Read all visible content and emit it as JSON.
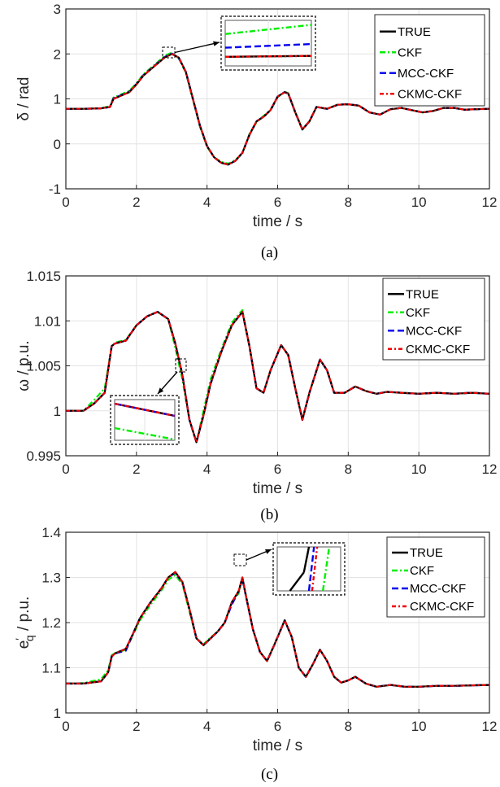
{
  "colors": {
    "TRUE": "#000000",
    "CKF": "#00ee00",
    "MCC-CKF": "#0000ee",
    "CKMC-CKF": "#ee0000",
    "grid": "#e3e3e3",
    "axis": "#262626"
  },
  "legend_labels": [
    "TRUE",
    "CKF",
    "MCC-CKF",
    "CKMC-CKF"
  ],
  "chart_data": [
    {
      "type": "line",
      "caption": "(a)",
      "xlabel": "time / s",
      "ylabel": "δ / rad",
      "xlim": [
        0,
        12
      ],
      "ylim": [
        -1,
        3
      ],
      "xticks": [
        "0",
        "2",
        "4",
        "6",
        "8",
        "10",
        "12"
      ],
      "yticks": [
        "-1",
        "0",
        "1",
        "2",
        "3"
      ],
      "grid": true,
      "legend_position": "top-right",
      "inset": "zoom near t = 3 s, top center",
      "x": [
        0,
        0.5,
        1.0,
        1.25,
        1.35,
        1.5,
        1.8,
        2.0,
        2.2,
        2.5,
        2.8,
        3.0,
        3.2,
        3.4,
        3.6,
        3.8,
        4.0,
        4.2,
        4.4,
        4.6,
        4.8,
        5.0,
        5.2,
        5.4,
        5.6,
        5.8,
        6.0,
        6.2,
        6.3,
        6.5,
        6.7,
        6.9,
        7.1,
        7.4,
        7.7,
        8.0,
        8.3,
        8.6,
        8.9,
        9.2,
        9.5,
        9.8,
        10.1,
        10.4,
        10.7,
        11.0,
        11.3,
        11.6,
        12.0
      ],
      "series": [
        {
          "name": "TRUE",
          "values": [
            0.78,
            0.78,
            0.79,
            0.82,
            1.0,
            1.05,
            1.15,
            1.32,
            1.52,
            1.72,
            1.92,
            2.0,
            1.92,
            1.6,
            1.0,
            0.4,
            -0.05,
            -0.3,
            -0.42,
            -0.46,
            -0.38,
            -0.2,
            0.2,
            0.5,
            0.6,
            0.75,
            1.05,
            1.15,
            1.12,
            0.7,
            0.32,
            0.5,
            0.82,
            0.78,
            0.87,
            0.88,
            0.85,
            0.7,
            0.65,
            0.77,
            0.8,
            0.75,
            0.7,
            0.73,
            0.8,
            0.8,
            0.76,
            0.77,
            0.78
          ]
        },
        {
          "name": "CKF",
          "values": [
            0.78,
            0.78,
            0.79,
            0.84,
            1.03,
            1.08,
            1.18,
            1.35,
            1.55,
            1.75,
            1.96,
            2.03,
            1.9,
            1.58,
            0.98,
            0.38,
            -0.07,
            -0.3,
            -0.4,
            -0.44,
            -0.36,
            -0.22,
            0.22,
            0.48,
            0.62,
            0.76,
            1.04,
            1.15,
            1.13,
            0.71,
            0.32,
            0.5,
            0.82,
            0.78,
            0.87,
            0.88,
            0.85,
            0.7,
            0.65,
            0.77,
            0.8,
            0.75,
            0.7,
            0.73,
            0.8,
            0.8,
            0.76,
            0.77,
            0.78
          ]
        },
        {
          "name": "MCC-CKF",
          "values": [
            0.78,
            0.78,
            0.79,
            0.82,
            1.01,
            1.06,
            1.16,
            1.33,
            1.53,
            1.73,
            1.93,
            2.01,
            1.91,
            1.6,
            1.0,
            0.4,
            -0.05,
            -0.3,
            -0.42,
            -0.46,
            -0.38,
            -0.2,
            0.2,
            0.5,
            0.6,
            0.75,
            1.05,
            1.15,
            1.12,
            0.7,
            0.32,
            0.5,
            0.82,
            0.78,
            0.87,
            0.88,
            0.85,
            0.7,
            0.65,
            0.77,
            0.8,
            0.75,
            0.7,
            0.73,
            0.8,
            0.8,
            0.76,
            0.77,
            0.78
          ]
        },
        {
          "name": "CKMC-CKF",
          "values": [
            0.78,
            0.78,
            0.79,
            0.82,
            1.0,
            1.05,
            1.15,
            1.32,
            1.52,
            1.72,
            1.92,
            2.0,
            1.92,
            1.6,
            1.0,
            0.4,
            -0.05,
            -0.3,
            -0.42,
            -0.46,
            -0.38,
            -0.2,
            0.2,
            0.5,
            0.6,
            0.75,
            1.05,
            1.15,
            1.12,
            0.7,
            0.32,
            0.5,
            0.82,
            0.78,
            0.87,
            0.88,
            0.85,
            0.7,
            0.65,
            0.77,
            0.8,
            0.75,
            0.7,
            0.73,
            0.8,
            0.8,
            0.76,
            0.77,
            0.78
          ]
        }
      ]
    },
    {
      "type": "line",
      "caption": "(b)",
      "xlabel": "time / s",
      "ylabel": "ω / p.u.",
      "xlim": [
        0,
        12
      ],
      "ylim": [
        0.995,
        1.015
      ],
      "xticks": [
        "0",
        "2",
        "4",
        "6",
        "8",
        "10",
        "12"
      ],
      "yticks": [
        "0.995",
        "1",
        "1.005",
        "1.01",
        "1.015"
      ],
      "grid": true,
      "legend_position": "top-right",
      "inset": "zoom near t = 3.2 s, lower left",
      "x": [
        0,
        0.5,
        0.8,
        1.1,
        1.3,
        1.4,
        1.7,
        2.0,
        2.3,
        2.6,
        2.9,
        3.1,
        3.3,
        3.5,
        3.7,
        3.9,
        4.1,
        4.4,
        4.7,
        5.0,
        5.2,
        5.4,
        5.6,
        5.8,
        6.1,
        6.3,
        6.5,
        6.7,
        6.9,
        7.2,
        7.4,
        7.6,
        7.9,
        8.2,
        8.5,
        8.8,
        9.1,
        9.5,
        10.0,
        10.5,
        11.0,
        11.5,
        12.0
      ],
      "series": [
        {
          "name": "TRUE",
          "values": [
            1.0,
            1.0,
            1.0008,
            1.002,
            1.0072,
            1.0075,
            1.0078,
            1.0095,
            1.0105,
            1.011,
            1.0102,
            1.0075,
            1.004,
            0.999,
            0.9965,
            0.9995,
            1.003,
            1.0065,
            1.0095,
            1.011,
            1.0072,
            1.0025,
            1.002,
            1.0045,
            1.0073,
            1.0062,
            1.0025,
            0.999,
            1.002,
            1.0057,
            1.0045,
            1.002,
            1.002,
            1.0027,
            1.0022,
            1.0019,
            1.0021,
            1.002,
            1.0019,
            1.002,
            1.0019,
            1.002,
            1.0019
          ]
        },
        {
          "name": "CKF",
          "values": [
            1.0,
            1.0,
            1.0012,
            1.0025,
            1.0072,
            1.0076,
            1.0079,
            1.0095,
            1.0105,
            1.011,
            1.0102,
            1.007,
            1.0035,
            0.999,
            0.9965,
            1.0,
            1.0035,
            1.0068,
            1.0098,
            1.0112,
            1.0072,
            1.0025,
            1.002,
            1.0045,
            1.0073,
            1.0062,
            1.0025,
            0.999,
            1.002,
            1.0057,
            1.0045,
            1.002,
            1.002,
            1.0027,
            1.0022,
            1.0019,
            1.0021,
            1.002,
            1.0019,
            1.002,
            1.0019,
            1.002,
            1.0019
          ]
        },
        {
          "name": "MCC-CKF",
          "values": [
            1.0,
            1.0,
            1.0008,
            1.002,
            1.0072,
            1.0075,
            1.0078,
            1.0095,
            1.0105,
            1.011,
            1.0102,
            1.0075,
            1.004,
            0.999,
            0.9965,
            0.9995,
            1.003,
            1.0065,
            1.0095,
            1.011,
            1.0072,
            1.0025,
            1.002,
            1.0045,
            1.0073,
            1.0062,
            1.0025,
            0.999,
            1.002,
            1.0057,
            1.0045,
            1.002,
            1.002,
            1.0027,
            1.0022,
            1.0019,
            1.0021,
            1.002,
            1.0019,
            1.002,
            1.0019,
            1.002,
            1.0019
          ]
        },
        {
          "name": "CKMC-CKF",
          "values": [
            1.0,
            1.0,
            1.0008,
            1.002,
            1.0072,
            1.0075,
            1.0078,
            1.0095,
            1.0105,
            1.011,
            1.0102,
            1.0075,
            1.004,
            0.999,
            0.9965,
            0.9995,
            1.003,
            1.0065,
            1.0095,
            1.011,
            1.0072,
            1.0025,
            1.002,
            1.0045,
            1.0073,
            1.0062,
            1.0025,
            0.999,
            1.002,
            1.0057,
            1.0045,
            1.002,
            1.002,
            1.0027,
            1.0022,
            1.0019,
            1.0021,
            1.002,
            1.0019,
            1.002,
            1.0019,
            1.002,
            1.0019
          ]
        }
      ]
    },
    {
      "type": "line",
      "caption": "(c)",
      "xlabel": "time / s",
      "ylabel": "e′q / p.u.",
      "ylabel_main": "e",
      "ylabel_prime": "′",
      "ylabel_sub": "q",
      "ylabel_unit": " / p.u.",
      "xlim": [
        0,
        12
      ],
      "ylim": [
        1,
        1.4
      ],
      "xticks": [
        "0",
        "2",
        "4",
        "6",
        "8",
        "10",
        "12"
      ],
      "yticks": [
        "1",
        "1.1",
        "1.2",
        "1.3",
        "1.4"
      ],
      "grid": true,
      "legend_position": "top-right",
      "inset": "zoom near t = 5 s, top right",
      "x": [
        0,
        0.5,
        1.0,
        1.2,
        1.3,
        1.4,
        1.7,
        1.9,
        2.1,
        2.4,
        2.7,
        2.9,
        3.1,
        3.3,
        3.5,
        3.7,
        3.9,
        4.1,
        4.3,
        4.5,
        4.7,
        4.9,
        5.0,
        5.1,
        5.3,
        5.5,
        5.7,
        5.9,
        6.2,
        6.4,
        6.6,
        6.8,
        7.0,
        7.2,
        7.4,
        7.6,
        7.8,
        8.0,
        8.2,
        8.5,
        8.8,
        9.2,
        9.6,
        10.0,
        10.5,
        11.0,
        11.5,
        12.0
      ],
      "series": [
        {
          "name": "TRUE",
          "values": [
            1.065,
            1.065,
            1.07,
            1.09,
            1.125,
            1.132,
            1.142,
            1.175,
            1.21,
            1.245,
            1.275,
            1.3,
            1.312,
            1.29,
            1.23,
            1.165,
            1.15,
            1.165,
            1.18,
            1.2,
            1.245,
            1.27,
            1.3,
            1.26,
            1.185,
            1.135,
            1.115,
            1.15,
            1.205,
            1.168,
            1.1,
            1.08,
            1.108,
            1.14,
            1.115,
            1.08,
            1.067,
            1.072,
            1.08,
            1.065,
            1.058,
            1.062,
            1.058,
            1.058,
            1.06,
            1.06,
            1.061,
            1.062
          ]
        },
        {
          "name": "CKF",
          "values": [
            1.065,
            1.066,
            1.075,
            1.095,
            1.128,
            1.133,
            1.14,
            1.172,
            1.205,
            1.24,
            1.27,
            1.295,
            1.305,
            1.285,
            1.225,
            1.165,
            1.152,
            1.167,
            1.18,
            1.2,
            1.245,
            1.265,
            1.295,
            1.262,
            1.185,
            1.135,
            1.115,
            1.15,
            1.205,
            1.168,
            1.1,
            1.08,
            1.108,
            1.14,
            1.115,
            1.08,
            1.067,
            1.072,
            1.08,
            1.065,
            1.058,
            1.062,
            1.058,
            1.058,
            1.06,
            1.06,
            1.061,
            1.062
          ]
        },
        {
          "name": "MCC-CKF",
          "values": [
            1.065,
            1.065,
            1.07,
            1.09,
            1.125,
            1.132,
            1.138,
            1.175,
            1.21,
            1.245,
            1.275,
            1.3,
            1.31,
            1.29,
            1.23,
            1.165,
            1.15,
            1.165,
            1.18,
            1.2,
            1.24,
            1.27,
            1.298,
            1.26,
            1.185,
            1.135,
            1.115,
            1.15,
            1.205,
            1.168,
            1.1,
            1.08,
            1.108,
            1.14,
            1.115,
            1.08,
            1.067,
            1.072,
            1.08,
            1.065,
            1.058,
            1.062,
            1.058,
            1.058,
            1.06,
            1.06,
            1.061,
            1.062
          ]
        },
        {
          "name": "CKMC-CKF",
          "values": [
            1.065,
            1.065,
            1.07,
            1.09,
            1.125,
            1.132,
            1.142,
            1.175,
            1.21,
            1.245,
            1.275,
            1.3,
            1.312,
            1.29,
            1.23,
            1.165,
            1.15,
            1.165,
            1.18,
            1.2,
            1.245,
            1.27,
            1.3,
            1.26,
            1.185,
            1.135,
            1.115,
            1.15,
            1.205,
            1.168,
            1.1,
            1.08,
            1.108,
            1.14,
            1.115,
            1.08,
            1.067,
            1.072,
            1.08,
            1.065,
            1.058,
            1.062,
            1.058,
            1.058,
            1.06,
            1.06,
            1.061,
            1.062
          ]
        }
      ]
    }
  ]
}
